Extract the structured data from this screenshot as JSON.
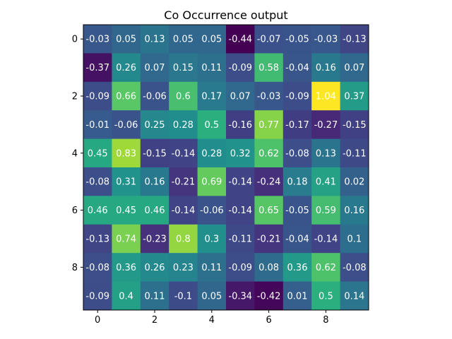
{
  "chart_data": {
    "type": "heatmap",
    "title": "Co Occurrence output",
    "colormap": "viridis",
    "value_range": [
      -0.44,
      1.04
    ],
    "text_color": "#ffffff",
    "x_ticks": [
      0,
      2,
      4,
      6,
      8
    ],
    "y_ticks": [
      0,
      2,
      4,
      6,
      8
    ],
    "x_tick_labels": [
      "0",
      "2",
      "4",
      "6",
      "8"
    ],
    "y_tick_labels": [
      "0",
      "2",
      "4",
      "6",
      "8"
    ],
    "values": [
      [
        -0.03,
        0.05,
        0.13,
        0.05,
        0.05,
        -0.44,
        -0.07,
        -0.05,
        -0.03,
        -0.13
      ],
      [
        -0.37,
        0.26,
        0.07,
        0.15,
        0.11,
        -0.09,
        0.58,
        -0.04,
        0.16,
        0.07
      ],
      [
        -0.09,
        0.66,
        -0.06,
        0.6,
        0.17,
        0.07,
        -0.03,
        -0.09,
        1.04,
        0.37
      ],
      [
        -0.01,
        -0.06,
        0.25,
        0.28,
        0.5,
        -0.16,
        0.77,
        -0.17,
        -0.27,
        -0.15
      ],
      [
        0.45,
        0.83,
        -0.15,
        -0.14,
        0.28,
        0.32,
        0.62,
        -0.08,
        0.13,
        -0.11
      ],
      [
        -0.08,
        0.31,
        0.16,
        -0.21,
        0.69,
        -0.14,
        -0.24,
        0.18,
        0.41,
        0.02
      ],
      [
        0.46,
        0.45,
        0.46,
        -0.14,
        -0.06,
        -0.14,
        0.65,
        -0.05,
        0.59,
        0.16
      ],
      [
        -0.13,
        0.74,
        -0.23,
        0.8,
        0.3,
        -0.11,
        -0.21,
        -0.04,
        -0.14,
        0.1
      ],
      [
        -0.08,
        0.36,
        0.26,
        0.23,
        0.11,
        -0.09,
        0.08,
        0.36,
        0.62,
        -0.08
      ],
      [
        -0.09,
        0.4,
        0.11,
        -0.1,
        0.05,
        -0.34,
        -0.42,
        0.01,
        0.5,
        0.14
      ]
    ]
  }
}
